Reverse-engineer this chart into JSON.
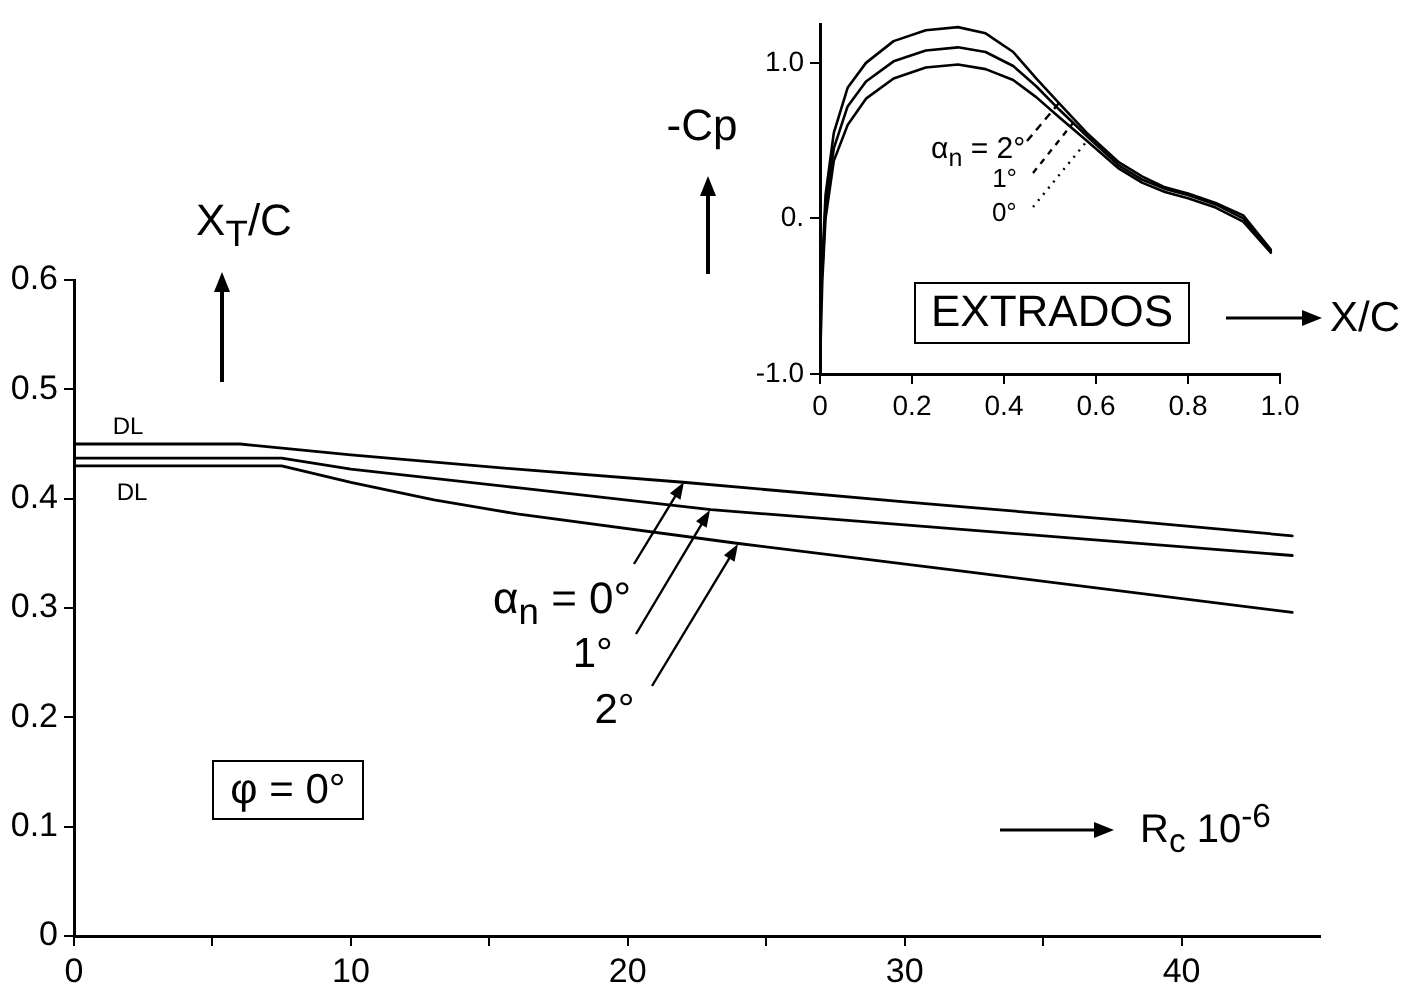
{
  "chart_data": [
    {
      "type": "line",
      "xlabel": "R$_{c}$ 10$^{-6}$",
      "ylabel": "X$_{T}$/C",
      "annotations": [
        "DL",
        "DL",
        "φ = 0°",
        {
          "text": "α$_{n}$ = 0°",
          "x": 22,
          "y": 0.415
        },
        {
          "text": "1°",
          "x": 23,
          "y": 0.39
        },
        {
          "text": "2°",
          "x": 24,
          "y": 0.359
        }
      ],
      "series": [
        {
          "color": "#000000",
          "x": [
            0,
            6,
            10,
            16,
            22,
            30,
            38,
            44
          ],
          "values": [
            0.45,
            0.45,
            0.44,
            0.427,
            0.415,
            0.397,
            0.38,
            0.366
          ]
        },
        {
          "color": "#000000",
          "x": [
            0,
            7.5,
            10,
            16,
            23,
            30,
            38,
            44
          ],
          "values": [
            0.437,
            0.437,
            0.427,
            0.41,
            0.39,
            0.376,
            0.36,
            0.348
          ]
        },
        {
          "color": "#000000",
          "x": [
            0,
            7.5,
            10,
            13,
            16,
            24,
            32,
            44
          ],
          "values": [
            0.43,
            0.43,
            0.415,
            0.399,
            0.386,
            0.359,
            0.334,
            0.296
          ]
        }
      ],
      "xlim": [
        0,
        45
      ],
      "xticks": [
        0,
        {
          "value": 5,
          "label": null
        },
        10,
        {
          "value": 15,
          "label": null
        },
        20,
        {
          "value": 25,
          "label": null
        },
        30,
        {
          "value": 35,
          "label": null
        },
        40
      ],
      "ylim": [
        0,
        0.6
      ],
      "yticks": [
        0,
        0.1,
        0.2,
        0.3,
        0.4,
        0.5,
        0.6
      ],
      "grid": false,
      "legend": false,
      "marker": "none",
      "line_style": "solid"
    },
    {
      "type": "line",
      "xlabel": "X/C",
      "ylabel": "-Cp",
      "annotations": [
        "EXTRADOS",
        {
          "text": "α$_{n}$ = 2°",
          "x": 0.52,
          "y": 0.74
        },
        {
          "text": "1°",
          "x": 0.55,
          "y": 0.62
        },
        {
          "text": "0°",
          "x": 0.58,
          "y": 0.5
        }
      ],
      "x": [
        0,
        0.005,
        0.012,
        0.03,
        0.06,
        0.1,
        0.16,
        0.23,
        0.3,
        0.36,
        0.42,
        0.47,
        0.52,
        0.58,
        0.65,
        0.7,
        0.75,
        0.8,
        0.86,
        0.92,
        0.98
      ],
      "series": [
        {
          "color": "#000000",
          "values": [
            null,
            -0.3,
            0.15,
            0.55,
            0.84,
            1.0,
            1.14,
            1.21,
            1.23,
            1.19,
            1.07,
            0.9,
            0.74,
            0.55,
            0.36,
            0.27,
            0.2,
            0.16,
            0.1,
            0.02,
            -0.2
          ]
        },
        {
          "color": "#000000",
          "values": [
            null,
            -0.35,
            0.08,
            0.45,
            0.72,
            0.88,
            1.01,
            1.08,
            1.1,
            1.07,
            0.98,
            0.85,
            0.7,
            0.53,
            0.34,
            0.25,
            0.19,
            0.15,
            0.09,
            0.0,
            -0.21
          ]
        },
        {
          "color": "#000000",
          "values": [
            -0.95,
            -0.4,
            0.0,
            0.37,
            0.6,
            0.77,
            0.9,
            0.97,
            0.99,
            0.96,
            0.89,
            0.78,
            0.65,
            0.5,
            0.32,
            0.23,
            0.17,
            0.13,
            0.07,
            -0.02,
            -0.22
          ]
        }
      ],
      "xlim": [
        0,
        1
      ],
      "xticks": [
        0,
        0.2,
        0.4,
        0.6,
        0.8,
        {
          "value": 1,
          "label": "1.0"
        }
      ],
      "ylim": [
        -1,
        1.25
      ],
      "yticks": [
        {
          "value": -1,
          "label": "-1.0"
        },
        {
          "value": 0,
          "label": "0."
        },
        {
          "value": 1,
          "label": "1.0"
        }
      ],
      "grid": false,
      "legend": false,
      "marker": "none",
      "line_style": "solid"
    }
  ]
}
